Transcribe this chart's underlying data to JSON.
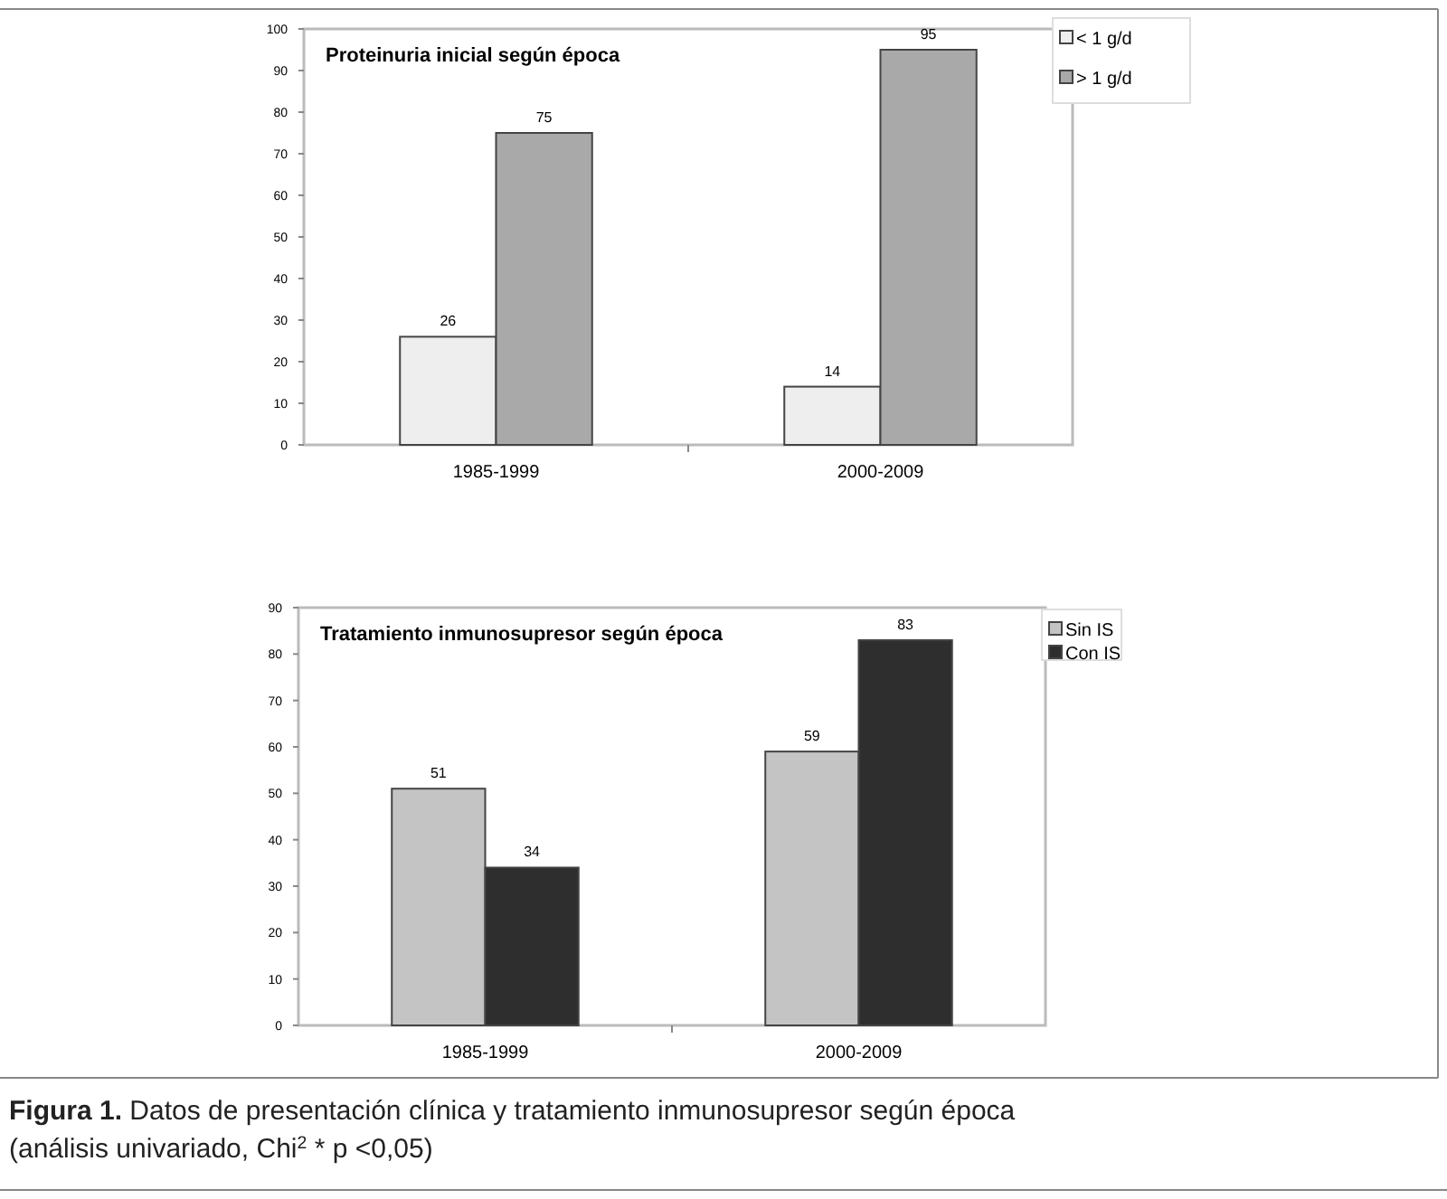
{
  "chart_data": [
    {
      "type": "bar",
      "title": "Proteinuria inicial según época",
      "categories": [
        "1985-1999",
        "2000-2009"
      ],
      "series": [
        {
          "name": "< 1 g/d",
          "color": "#eeeeee",
          "values": [
            26,
            14
          ]
        },
        {
          "name": "> 1 g/d",
          "color": "#a9a9a9",
          "values": [
            75,
            95
          ]
        }
      ],
      "ylim": [
        0,
        100
      ],
      "yticks": [
        0,
        10,
        20,
        30,
        40,
        50,
        60,
        70,
        80,
        90,
        100
      ],
      "data_labels": true,
      "legend": "top right",
      "grid": false
    },
    {
      "type": "bar",
      "title": "Tratamiento inmunosupresor según época",
      "categories": [
        "1985-1999",
        "2000-2009"
      ],
      "series": [
        {
          "name": "Sin IS",
          "color": "#c4c4c4",
          "values": [
            51,
            59
          ]
        },
        {
          "name": "Con IS",
          "color": "#2e2e2e",
          "values": [
            34,
            83
          ]
        }
      ],
      "ylim": [
        0,
        90
      ],
      "yticks": [
        0,
        10,
        20,
        30,
        40,
        50,
        60,
        70,
        80,
        90
      ],
      "data_labels": true,
      "legend": "top right",
      "grid": false,
      "annotations": [
        "Figura 1. Datos de presentación clínica y tratamiento inmunosupresor según época (análisis univariado, Chi$^{2}$ * p <0,05)"
      ]
    }
  ]
}
